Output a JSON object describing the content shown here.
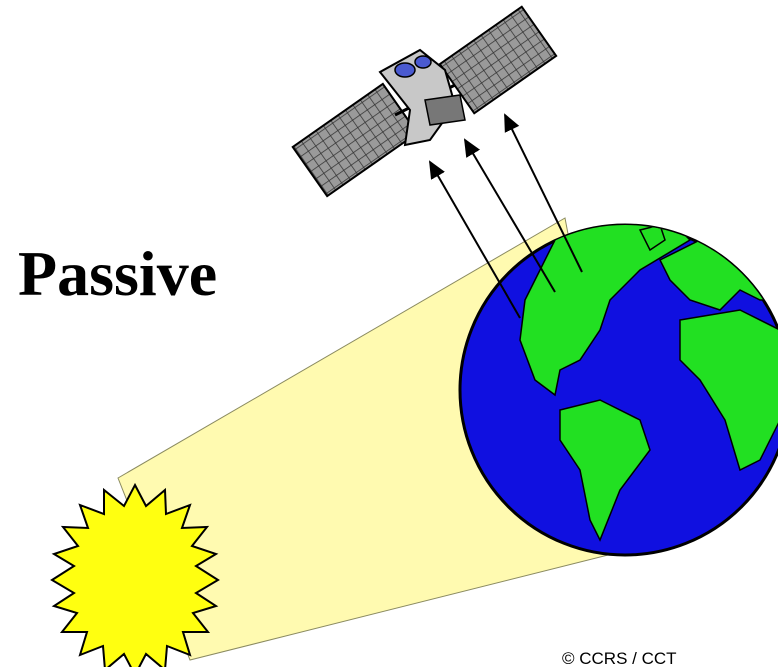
{
  "label": "Passive",
  "credit": "© CCRS / CCT"
}
